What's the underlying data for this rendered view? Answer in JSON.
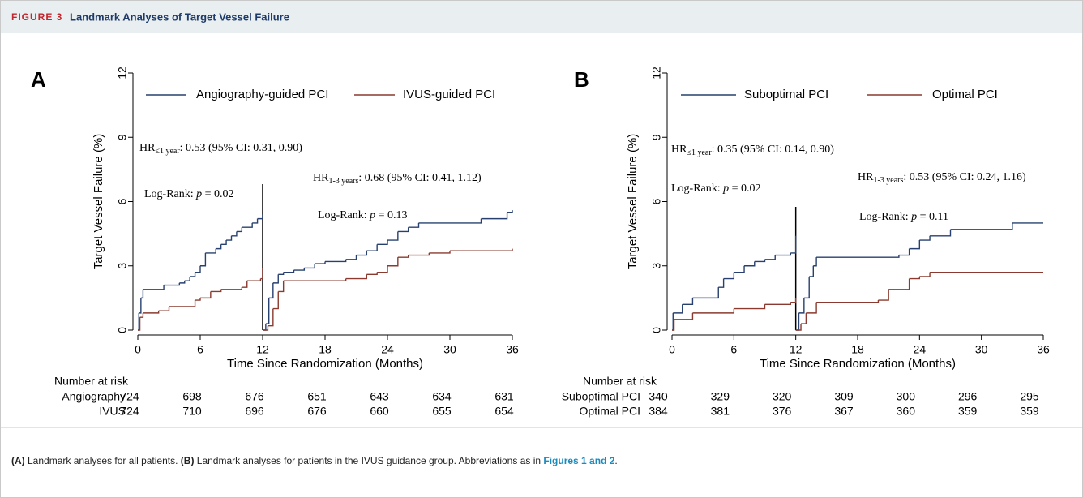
{
  "header": {
    "label": "FIGURE 3",
    "title": "Landmark Analyses of Target Vessel Failure"
  },
  "chart_data": [
    {
      "type": "line",
      "panel": "A",
      "ylabel": "Target Vessel Failure (%)",
      "xlabel": "Time Since Randomization (Months)",
      "xlim": [
        0,
        36
      ],
      "ylim": [
        0,
        12
      ],
      "xticks": [
        0,
        6,
        12,
        18,
        24,
        30,
        36
      ],
      "yticks": [
        0,
        3,
        6,
        9,
        12
      ],
      "series": [
        {
          "name": "Angiography-guided PCI",
          "color": "#27406f",
          "x": [
            0,
            0.1,
            0.3,
            0.5,
            2.5,
            4,
            4.5,
            5,
            5.5,
            6,
            6.5,
            7.5,
            8,
            8.5,
            9,
            9.5,
            10,
            11,
            11.5,
            12,
            null,
            12,
            12.3,
            12.6,
            13,
            13.5,
            14,
            15,
            16,
            17,
            18,
            20,
            21,
            22,
            23,
            24,
            25,
            26,
            27,
            33,
            35.5,
            36
          ],
          "values": [
            0,
            0.8,
            1.5,
            1.9,
            2.1,
            2.2,
            2.3,
            2.5,
            2.7,
            3.0,
            3.6,
            3.8,
            4.0,
            4.2,
            4.4,
            4.6,
            4.8,
            5.0,
            5.2,
            5.4,
            null,
            0,
            0.3,
            1.5,
            2.2,
            2.6,
            2.7,
            2.8,
            2.9,
            3.1,
            3.2,
            3.3,
            3.5,
            3.7,
            4.0,
            4.2,
            4.6,
            4.8,
            5.0,
            5.2,
            5.5,
            5.6
          ]
        },
        {
          "name": "IVUS-guided PCI",
          "color": "#8a3a2e",
          "x": [
            0,
            0.2,
            0.5,
            2,
            3,
            5.5,
            6,
            7,
            8,
            10,
            10.5,
            11.8,
            12,
            null,
            12,
            12.5,
            13,
            13.5,
            14,
            20,
            22,
            23,
            24,
            25,
            26,
            28,
            30,
            36
          ],
          "values": [
            0,
            0.6,
            0.8,
            0.9,
            1.1,
            1.4,
            1.5,
            1.8,
            1.9,
            2.0,
            2.3,
            2.4,
            2.9,
            null,
            0,
            0.2,
            1.0,
            1.8,
            2.3,
            2.4,
            2.6,
            2.7,
            3.0,
            3.4,
            3.5,
            3.6,
            3.7,
            3.8
          ]
        }
      ],
      "annotations": [
        {
          "base": "HR",
          "sub": "≤1 year",
          "text": ": 0.53 (95% CI: 0.31, 0.90)"
        },
        {
          "base": "Log-Rank: ",
          "italic": "p",
          "text": " = 0.02"
        },
        {
          "base": "HR",
          "sub": "1-3 years",
          "text": ": 0.68 (95% CI: 0.41, 1.12)"
        },
        {
          "base": "Log-Rank: ",
          "italic": "p",
          "text": " = 0.13"
        }
      ],
      "risk_table": {
        "title": "Number at risk",
        "rows": [
          {
            "label": "Angiography",
            "values": [
              724,
              698,
              676,
              651,
              643,
              634,
              631
            ]
          },
          {
            "label": "IVUS",
            "values": [
              724,
              710,
              696,
              676,
              660,
              655,
              654
            ]
          }
        ]
      }
    },
    {
      "type": "line",
      "panel": "B",
      "ylabel": "Target Vessel Failure (%)",
      "xlabel": "Time Since Randomization (Months)",
      "xlim": [
        0,
        36
      ],
      "ylim": [
        0,
        12
      ],
      "xticks": [
        0,
        6,
        12,
        18,
        24,
        30,
        36
      ],
      "yticks": [
        0,
        3,
        6,
        9,
        12
      ],
      "series": [
        {
          "name": "Suboptimal PCI",
          "color": "#27406f",
          "x": [
            0,
            0.1,
            1,
            2,
            4.5,
            5,
            6,
            7,
            8,
            9,
            10,
            11.5,
            12,
            null,
            12,
            12.3,
            12.8,
            13.3,
            13.7,
            14,
            22,
            23,
            24,
            25,
            27,
            33,
            36
          ],
          "values": [
            0,
            0.8,
            1.2,
            1.5,
            2.0,
            2.4,
            2.7,
            3.0,
            3.2,
            3.3,
            3.5,
            3.6,
            4.4,
            null,
            0,
            0.8,
            1.5,
            2.5,
            3.0,
            3.4,
            3.5,
            3.8,
            4.2,
            4.4,
            4.7,
            5.0,
            5.0
          ]
        },
        {
          "name": "Optimal PCI",
          "color": "#8a3a2e",
          "x": [
            0,
            0.2,
            2,
            6,
            9,
            11.5,
            12,
            null,
            12,
            12.5,
            13,
            14,
            20,
            21,
            23,
            24,
            25,
            36
          ],
          "values": [
            0,
            0.5,
            0.8,
            1.0,
            1.2,
            1.3,
            1.5,
            null,
            0,
            0.3,
            0.8,
            1.3,
            1.4,
            1.9,
            2.4,
            2.5,
            2.7,
            2.7
          ]
        }
      ],
      "annotations": [
        {
          "base": "HR",
          "sub": "≤1 year",
          "text": ": 0.35 (95% CI: 0.14, 0.90)"
        },
        {
          "base": "Log-Rank: ",
          "italic": "p",
          "text": " = 0.02"
        },
        {
          "base": "HR",
          "sub": "1-3 years",
          "text": ": 0.53 (95% CI: 0.24, 1.16)"
        },
        {
          "base": "Log-Rank: ",
          "italic": "p",
          "text": " = 0.11"
        }
      ],
      "risk_table": {
        "title": "Number at risk",
        "rows": [
          {
            "label": "Suboptimal PCI",
            "values": [
              340,
              329,
              320,
              309,
              300,
              296,
              295
            ]
          },
          {
            "label": "Optimal PCI",
            "values": [
              384,
              381,
              376,
              367,
              360,
              359,
              359
            ]
          }
        ]
      }
    }
  ],
  "caption": {
    "parts": [
      "(A)",
      " Landmark analyses for all patients. ",
      "(B)",
      " Landmark analyses for patients in the IVUS guidance group. Abbreviations as in ",
      "Figures 1 and 2",
      "."
    ]
  }
}
